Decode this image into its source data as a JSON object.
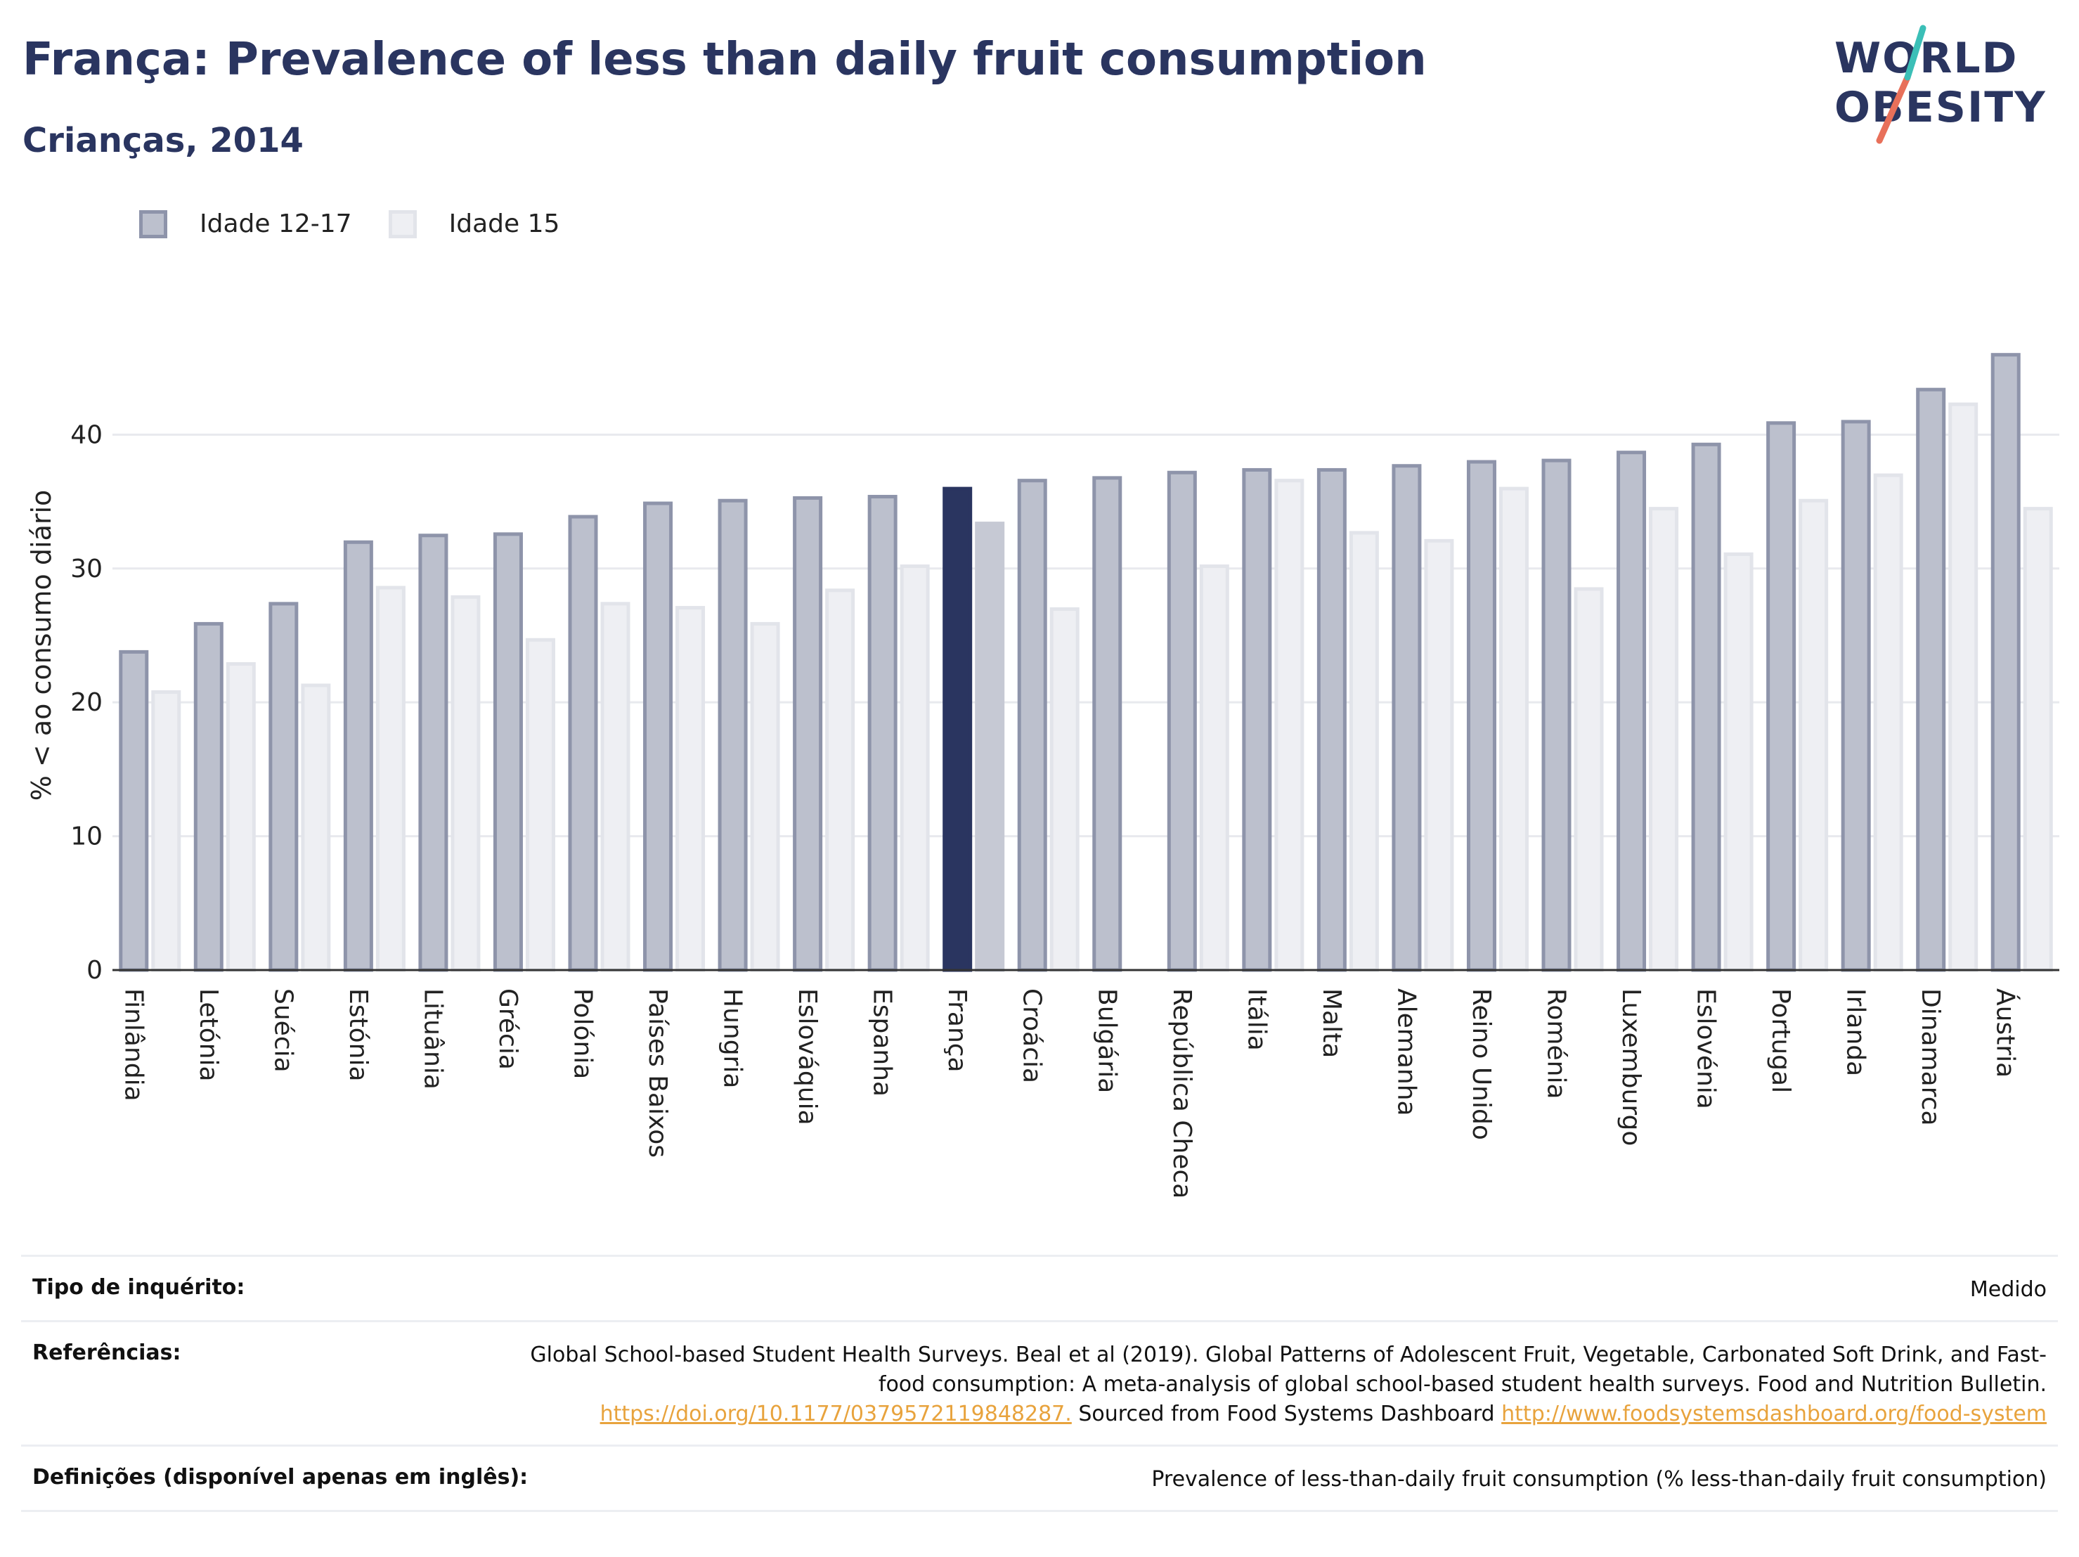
{
  "header": {
    "title": "França: Prevalence of less than daily fruit consumption",
    "subtitle": "Crianças, 2014"
  },
  "logo": {
    "line1": "WORLD",
    "line2": "OBESITY",
    "slash_color": "#e8705a",
    "slash_accent": "#3bbfb7"
  },
  "colors": {
    "series1_fill": "#bcc0cd",
    "series1_stroke": "#8e94aa",
    "series2_fill": "#eeeff3",
    "series2_stroke": "#e2e4ea",
    "highlight1": "#2a3560",
    "highlight2": "#c6c9d4",
    "grid": "#e8e9ee",
    "axis": "#333333"
  },
  "chart_data": {
    "type": "bar",
    "ylabel": "% < ao consumo diário",
    "ylim": [
      0,
      48
    ],
    "yticks": [
      0,
      10,
      20,
      30,
      40
    ],
    "grid": true,
    "legend_position": "top-left",
    "highlight_category": "França",
    "categories": [
      "Finlândia",
      "Letónia",
      "Suécia",
      "Estónia",
      "Lituânia",
      "Grécia",
      "Polónia",
      "Países Baixos",
      "Hungria",
      "Eslováquia",
      "Espanha",
      "França",
      "Croácia",
      "Bulgária",
      "República Checa",
      "Itália",
      "Malta",
      "Alemanha",
      "Reino Unido",
      "Roménia",
      "Luxemburgo",
      "Eslovénia",
      "Portugal",
      "Irlanda",
      "Dinamarca",
      "Áustria"
    ],
    "series": [
      {
        "name": "Idade 12-17",
        "values": [
          23.9,
          26.0,
          27.5,
          32.1,
          32.6,
          32.7,
          34.0,
          35.0,
          35.2,
          35.4,
          35.5,
          36.1,
          36.7,
          36.9,
          37.3,
          37.5,
          37.5,
          37.8,
          38.1,
          38.2,
          38.8,
          39.4,
          41.0,
          41.1,
          43.5,
          46.1
        ]
      },
      {
        "name": "Idade 15",
        "values": [
          20.9,
          23.0,
          21.4,
          28.7,
          28.0,
          24.8,
          27.5,
          27.2,
          26.0,
          28.5,
          30.3,
          33.5,
          27.1,
          null,
          30.3,
          36.7,
          32.8,
          32.2,
          36.1,
          28.6,
          34.6,
          31.2,
          35.2,
          37.1,
          42.4,
          34.6
        ]
      }
    ]
  },
  "footer": {
    "survey_label": "Tipo de inquérito:",
    "survey_value": "Medido",
    "refs_label": "Referências:",
    "refs_text_1": "Global School-based Student Health Surveys. Beal et al (2019). Global Patterns of Adolescent Fruit, Vegetable, Carbonated Soft Drink, and Fast-food consumption: A meta-analysis of global school-based student health surveys. Food and Nutrition Bulletin.",
    "refs_link_1": "https://doi.org/10.1177/0379572119848287.",
    "refs_text_2": "Sourced from Food Systems Dashboard",
    "refs_link_2": "http://www.foodsystemsdashboard.org/food-system",
    "defs_label": "Definições (disponível apenas em inglês):",
    "defs_value": "Prevalence of less-than-daily fruit consumption (% less-than-daily fruit consumption)"
  }
}
